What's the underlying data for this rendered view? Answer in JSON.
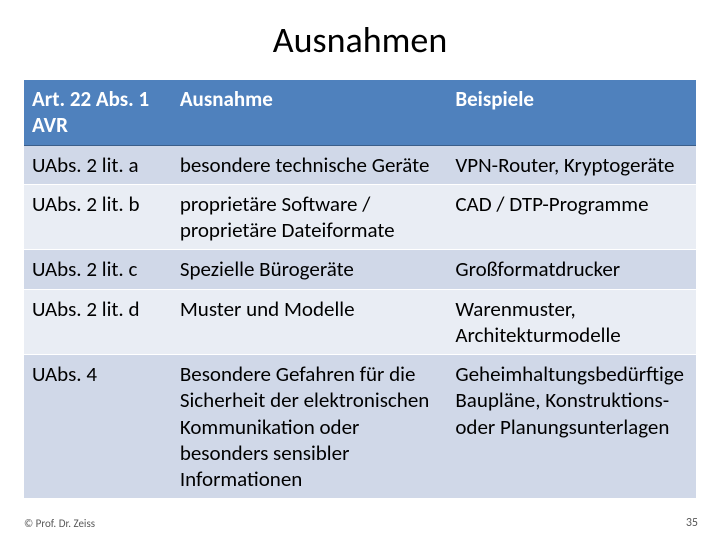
{
  "title": "Ausnahmen",
  "table": {
    "header_bg": "#4f81bd",
    "header_fg": "#ffffff",
    "header_border": "#3b5e8a",
    "row_odd_bg": "#d0d8e8",
    "row_even_bg": "#e9edf4",
    "row_border": "#ffffff",
    "columns": [
      "Art. 22 Abs.  1 AVR",
      "Ausnahme",
      "Beispiele"
    ],
    "rows": [
      [
        "UAbs. 2 lit. a",
        "besondere technische Geräte",
        "VPN-Router, Kryptogeräte"
      ],
      [
        "UAbs. 2 lit. b",
        "proprietäre Software / proprietäre Dateiformate",
        "CAD / DTP-Programme"
      ],
      [
        "UAbs. 2 lit. c",
        "Spezielle Bürogeräte",
        "Großformatdrucker"
      ],
      [
        "UAbs. 2 lit. d",
        "Muster und Modelle",
        "Warenmuster, Architekturmodelle"
      ],
      [
        "UAbs. 4",
        "Besondere Gefahren für die Sicherheit der elektronischen Kommunikation oder besonders sensibler Informationen",
        "Geheimhaltungsbedürftige Baupläne, Konstruktions- oder Planungsunterlagen"
      ]
    ]
  },
  "footer": "© Prof. Dr. Zeiss",
  "page_number": "35"
}
